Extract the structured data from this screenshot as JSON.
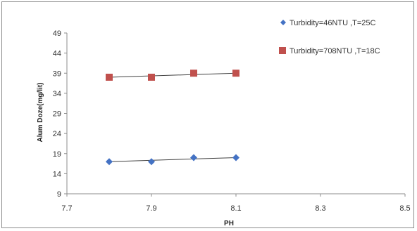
{
  "chart_data": {
    "type": "scatter",
    "xlabel": "PH",
    "ylabel": "Alum Doze(mg/lit)",
    "xlim": [
      7.7,
      8.5
    ],
    "ylim": [
      9,
      49
    ],
    "x_ticks": [
      "7.7",
      "7.9",
      "8.1",
      "8.3",
      "8.5"
    ],
    "y_ticks": [
      "9",
      "14",
      "19",
      "24",
      "29",
      "34",
      "39",
      "44",
      "49"
    ],
    "grid": false,
    "legend_position": "top-right",
    "series": [
      {
        "name": "Turbidity=46NTU ,T=25C",
        "marker": "diamond",
        "color": "#4472c4",
        "x": [
          7.8,
          7.9,
          8.0,
          8.1
        ],
        "y": [
          17,
          17,
          18,
          18
        ],
        "trendline": [
          [
            7.8,
            17.0
          ],
          [
            8.1,
            18.0
          ]
        ]
      },
      {
        "name": "Turbidity=708NTU ,T=18C",
        "marker": "square",
        "color": "#c0504d",
        "x": [
          7.8,
          7.9,
          8.0,
          8.1
        ],
        "y": [
          38,
          38,
          39,
          39
        ],
        "trendline": [
          [
            7.8,
            38.0
          ],
          [
            8.1,
            39.0
          ]
        ]
      }
    ]
  }
}
